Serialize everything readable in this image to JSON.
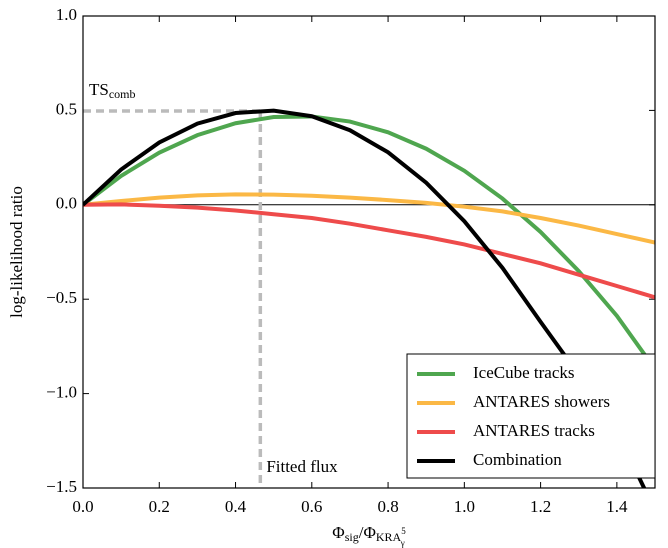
{
  "chart_data": {
    "type": "line",
    "x_label": [
      {
        "text": "Φ",
        "style": "normal"
      },
      {
        "text": "sig",
        "style": "sub"
      },
      {
        "text": "/Φ",
        "style": "normal"
      },
      {
        "text": "KRA",
        "style": "sub"
      },
      {
        "text": "5",
        "style": "subsup"
      },
      {
        "text": "γ",
        "style": "subsub"
      }
    ],
    "y_label": "log-likelihood ratio",
    "x": [
      0,
      0.1,
      0.2,
      0.3,
      0.4,
      0.5,
      0.6,
      0.7,
      0.8,
      0.9,
      1.0,
      1.1,
      1.2,
      1.3,
      1.4,
      1.5
    ],
    "series": [
      {
        "name": "IceCube tracks",
        "color": "#4fa64f",
        "values": [
          0,
          0.153,
          0.276,
          0.369,
          0.432,
          0.465,
          0.468,
          0.441,
          0.384,
          0.297,
          0.18,
          0.033,
          -0.144,
          -0.351,
          -0.588,
          -0.87
        ]
      },
      {
        "name": "ANTARES showers",
        "color": "#fbb845",
        "values": [
          0,
          0.02,
          0.038,
          0.05,
          0.055,
          0.054,
          0.048,
          0.038,
          0.025,
          0.01,
          -0.01,
          -0.035,
          -0.07,
          -0.11,
          -0.155,
          -0.2
        ]
      },
      {
        "name": "ANTARES tracks",
        "color": "#ee4b4b",
        "values": [
          0,
          0.002,
          -0.005,
          -0.015,
          -0.03,
          -0.05,
          -0.07,
          -0.1,
          -0.135,
          -0.17,
          -0.21,
          -0.26,
          -0.31,
          -0.37,
          -0.43,
          -0.49
        ]
      },
      {
        "name": "Combination",
        "color": "#000000",
        "values": [
          0,
          0.187,
          0.33,
          0.43,
          0.486,
          0.499,
          0.469,
          0.395,
          0.278,
          0.117,
          -0.087,
          -0.334,
          -0.62,
          -0.9,
          -1.2,
          -1.62
        ]
      }
    ],
    "xlim": [
      0,
      1.5
    ],
    "ylim": [
      -1.5,
      1.0
    ],
    "xticks": [
      {
        "value": 0,
        "label": "0.0"
      },
      {
        "value": 0.2,
        "label": "0.2"
      },
      {
        "value": 0.4,
        "label": "0.4"
      },
      {
        "value": 0.6,
        "label": "0.6"
      },
      {
        "value": 0.8,
        "label": "0.8"
      },
      {
        "value": 1.0,
        "label": "1.0"
      },
      {
        "value": 1.2,
        "label": "1.2"
      },
      {
        "value": 1.4,
        "label": "1.4"
      }
    ],
    "yticks": [
      {
        "value": -1.5,
        "label": "−1.5"
      },
      {
        "value": -1.0,
        "label": "−1.0"
      },
      {
        "value": -0.5,
        "label": "−0.5"
      },
      {
        "value": 0,
        "label": "0.0"
      },
      {
        "value": 0.5,
        "label": "0.5"
      },
      {
        "value": 1.0,
        "label": "1.0"
      }
    ],
    "zero_line": 0,
    "fitted_flux": {
      "x": 0.465,
      "label": "Fitted flux"
    },
    "ts_comb": {
      "y": 0.497,
      "label": "TS",
      "subscript": "comb"
    },
    "legend": "lower right",
    "grid": false
  }
}
